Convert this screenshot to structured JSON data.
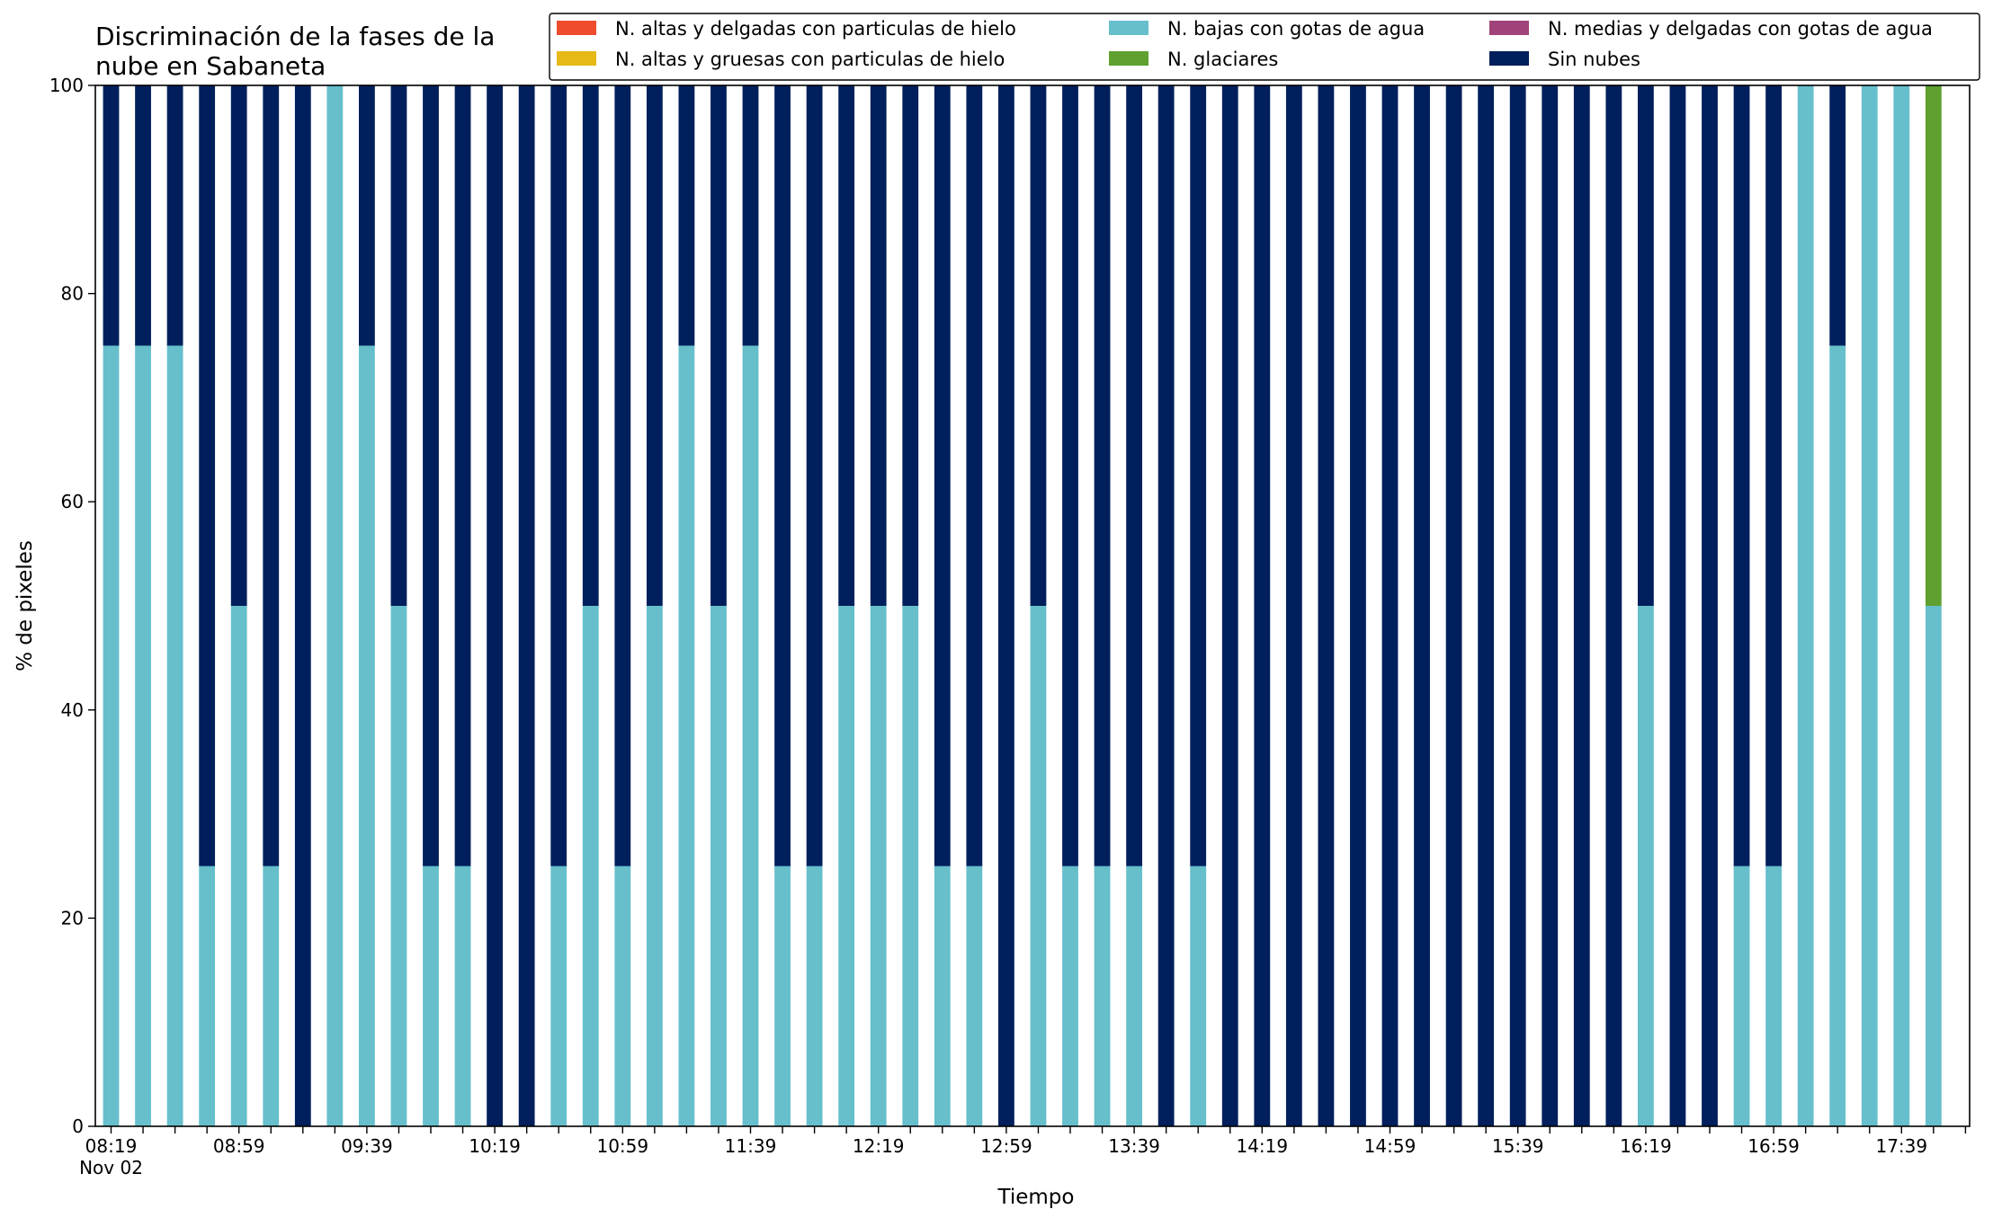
{
  "chart_data": {
    "type": "bar",
    "stacked": true,
    "title": "Discriminación de la fases de la nube en Sabaneta",
    "title_lines": [
      "Discriminación de la fases de la",
      "nube en Sabaneta"
    ],
    "xlabel": "Tiempo",
    "ylabel": "% de pixeles",
    "ylim": [
      0,
      100
    ],
    "yticks": [
      "0",
      "20",
      "40",
      "60",
      "80",
      "100"
    ],
    "grid": false,
    "legend_position": "top-right",
    "x": [
      "08:19",
      "08:29",
      "08:39",
      "08:49",
      "08:59",
      "09:09",
      "09:19",
      "09:29",
      "09:39",
      "09:49",
      "09:59",
      "10:09",
      "10:19",
      "10:29",
      "10:39",
      "10:49",
      "10:59",
      "11:09",
      "11:19",
      "11:29",
      "11:39",
      "11:49",
      "11:59",
      "12:09",
      "12:19",
      "12:29",
      "12:39",
      "12:49",
      "12:59",
      "13:09",
      "13:19",
      "13:29",
      "13:39",
      "13:49",
      "13:59",
      "14:09",
      "14:19",
      "14:29",
      "14:39",
      "14:49",
      "14:59",
      "15:09",
      "15:19",
      "15:29",
      "15:39",
      "15:49",
      "15:59",
      "16:09",
      "16:19",
      "16:29",
      "16:39",
      "16:49",
      "16:59",
      "17:09",
      "17:19",
      "17:29",
      "17:39",
      "17:49"
    ],
    "xticklabels": [
      "08:19",
      "08:59",
      "09:39",
      "10:19",
      "10:59",
      "11:39",
      "12:19",
      "12:59",
      "13:39",
      "14:19",
      "14:59",
      "15:39",
      "16:19",
      "16:59",
      "17:39"
    ],
    "xticklabel_first_sub": "Nov 02",
    "series": [
      {
        "name": "N. altas y delgadas con particulas de hielo",
        "color": "#ee4c2c",
        "values": [
          0,
          0,
          0,
          0,
          0,
          0,
          0,
          0,
          0,
          0,
          0,
          0,
          0,
          0,
          0,
          0,
          0,
          0,
          0,
          0,
          0,
          0,
          0,
          0,
          0,
          0,
          0,
          0,
          0,
          0,
          0,
          0,
          0,
          0,
          0,
          0,
          0,
          0,
          0,
          0,
          0,
          0,
          0,
          0,
          0,
          0,
          0,
          0,
          0,
          0,
          0,
          0,
          0,
          0,
          0,
          0,
          0,
          0
        ]
      },
      {
        "name": "N. altas y gruesas con particulas de hielo",
        "color": "#e6b916",
        "values": [
          0,
          0,
          0,
          0,
          0,
          0,
          0,
          0,
          0,
          0,
          0,
          0,
          0,
          0,
          0,
          0,
          0,
          0,
          0,
          0,
          0,
          0,
          0,
          0,
          0,
          0,
          0,
          0,
          0,
          0,
          0,
          0,
          0,
          0,
          0,
          0,
          0,
          0,
          0,
          0,
          0,
          0,
          0,
          0,
          0,
          0,
          0,
          0,
          0,
          0,
          0,
          0,
          0,
          0,
          0,
          0,
          0,
          0
        ]
      },
      {
        "name": "N. bajas con gotas de agua",
        "color": "#66bfcb",
        "values": [
          75,
          75,
          75,
          25,
          50,
          25,
          0,
          100,
          75,
          50,
          25,
          25,
          0,
          0,
          25,
          50,
          25,
          50,
          75,
          50,
          75,
          25,
          25,
          50,
          50,
          50,
          25,
          25,
          0,
          50,
          25,
          25,
          25,
          0,
          25,
          0,
          0,
          0,
          0,
          0,
          0,
          0,
          0,
          0,
          0,
          0,
          0,
          0,
          50,
          0,
          0,
          25,
          25,
          100,
          75,
          100,
          100,
          50
        ]
      },
      {
        "name": "N. glaciares",
        "color": "#5fa02e",
        "values": [
          0,
          0,
          0,
          0,
          0,
          0,
          0,
          0,
          0,
          0,
          0,
          0,
          0,
          0,
          0,
          0,
          0,
          0,
          0,
          0,
          0,
          0,
          0,
          0,
          0,
          0,
          0,
          0,
          0,
          0,
          0,
          0,
          0,
          0,
          0,
          0,
          0,
          0,
          0,
          0,
          0,
          0,
          0,
          0,
          0,
          0,
          0,
          0,
          0,
          0,
          0,
          0,
          0,
          0,
          0,
          0,
          0,
          50
        ]
      },
      {
        "name": "N. medias y delgadas con gotas de agua",
        "color": "#a0437a",
        "values": [
          0,
          0,
          0,
          0,
          0,
          0,
          0,
          0,
          0,
          0,
          0,
          0,
          0,
          0,
          0,
          0,
          0,
          0,
          0,
          0,
          0,
          0,
          0,
          0,
          0,
          0,
          0,
          0,
          0,
          0,
          0,
          0,
          0,
          0,
          0,
          0,
          0,
          0,
          0,
          0,
          0,
          0,
          0,
          0,
          0,
          0,
          0,
          0,
          0,
          0,
          0,
          0,
          0,
          0,
          0,
          0,
          0,
          0
        ]
      },
      {
        "name": "Sin nubes",
        "color": "#001f5c",
        "values": [
          25,
          25,
          25,
          75,
          50,
          75,
          100,
          0,
          25,
          50,
          75,
          75,
          100,
          100,
          75,
          50,
          75,
          50,
          25,
          50,
          25,
          75,
          75,
          50,
          50,
          50,
          75,
          75,
          100,
          50,
          75,
          75,
          75,
          100,
          75,
          100,
          100,
          100,
          100,
          100,
          100,
          100,
          100,
          100,
          100,
          100,
          100,
          100,
          50,
          100,
          100,
          75,
          75,
          0,
          25,
          0,
          0,
          0
        ]
      }
    ]
  }
}
